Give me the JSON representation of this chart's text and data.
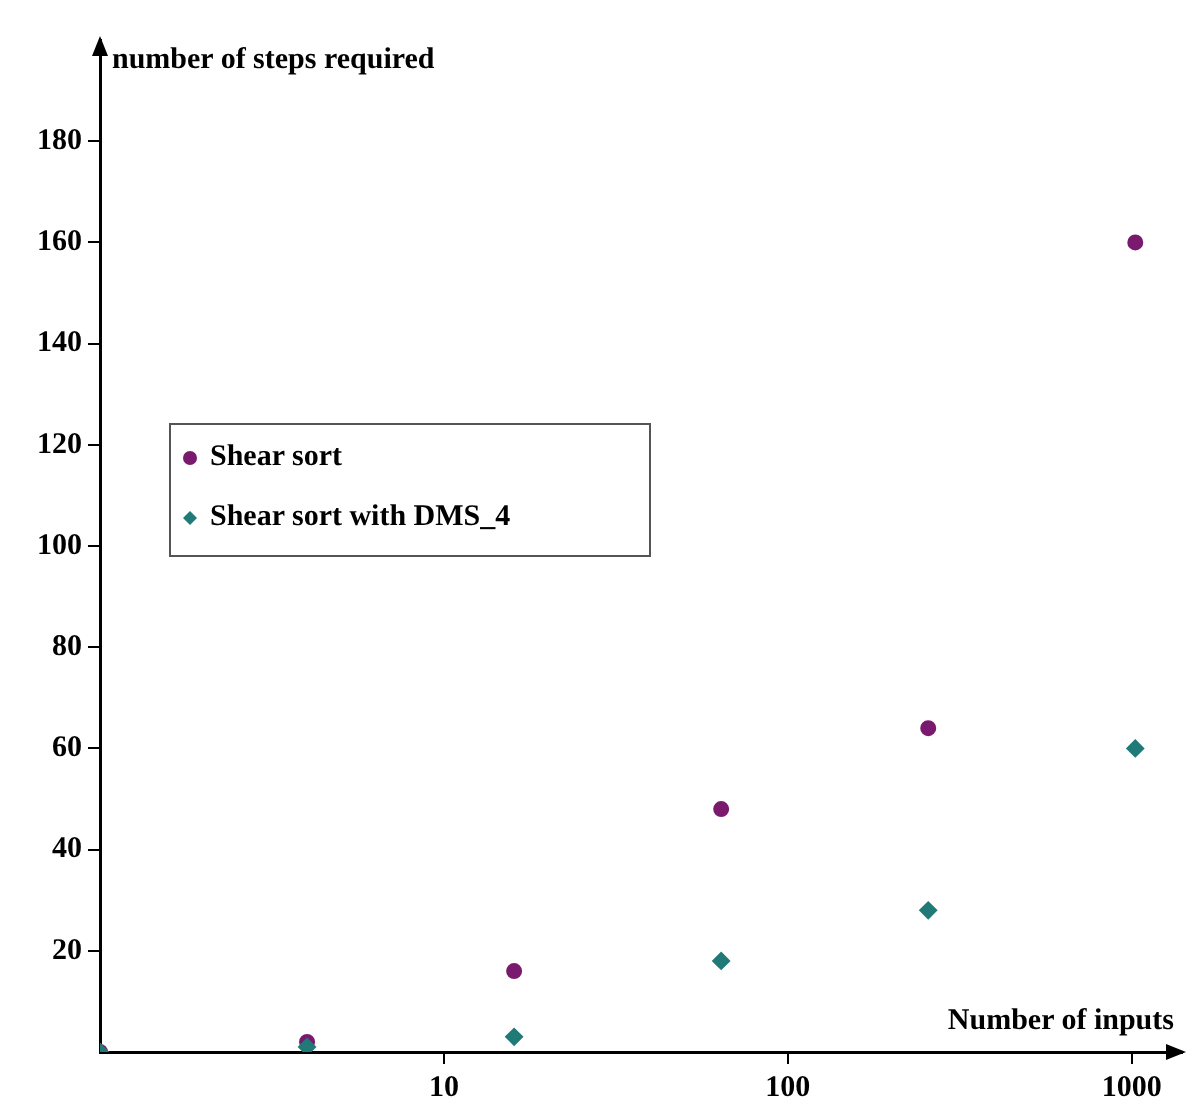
{
  "chart_data": {
    "type": "scatter",
    "xlabel": "Number of inputs",
    "ylabel": "number of steps required",
    "x": [
      1,
      4,
      16,
      64,
      256,
      1024
    ],
    "series": [
      {
        "name": "Shear sort",
        "color": "#7a1a6e",
        "marker": "circle",
        "values": [
          0,
          2,
          16,
          48,
          64,
          160
        ]
      },
      {
        "name": "Shear sort with DMS_4",
        "color": "#1f7a78",
        "marker": "diamond",
        "values": [
          0,
          1,
          3,
          18,
          28,
          60
        ]
      }
    ],
    "log": "x",
    "xlim": [
      1,
      1400
    ],
    "xticks": [
      10,
      100,
      1000
    ],
    "ylim": [
      0,
      200
    ],
    "yticks": [
      20,
      40,
      60,
      80,
      100,
      120,
      140,
      160,
      180
    ],
    "grid": false,
    "legend": "left"
  }
}
